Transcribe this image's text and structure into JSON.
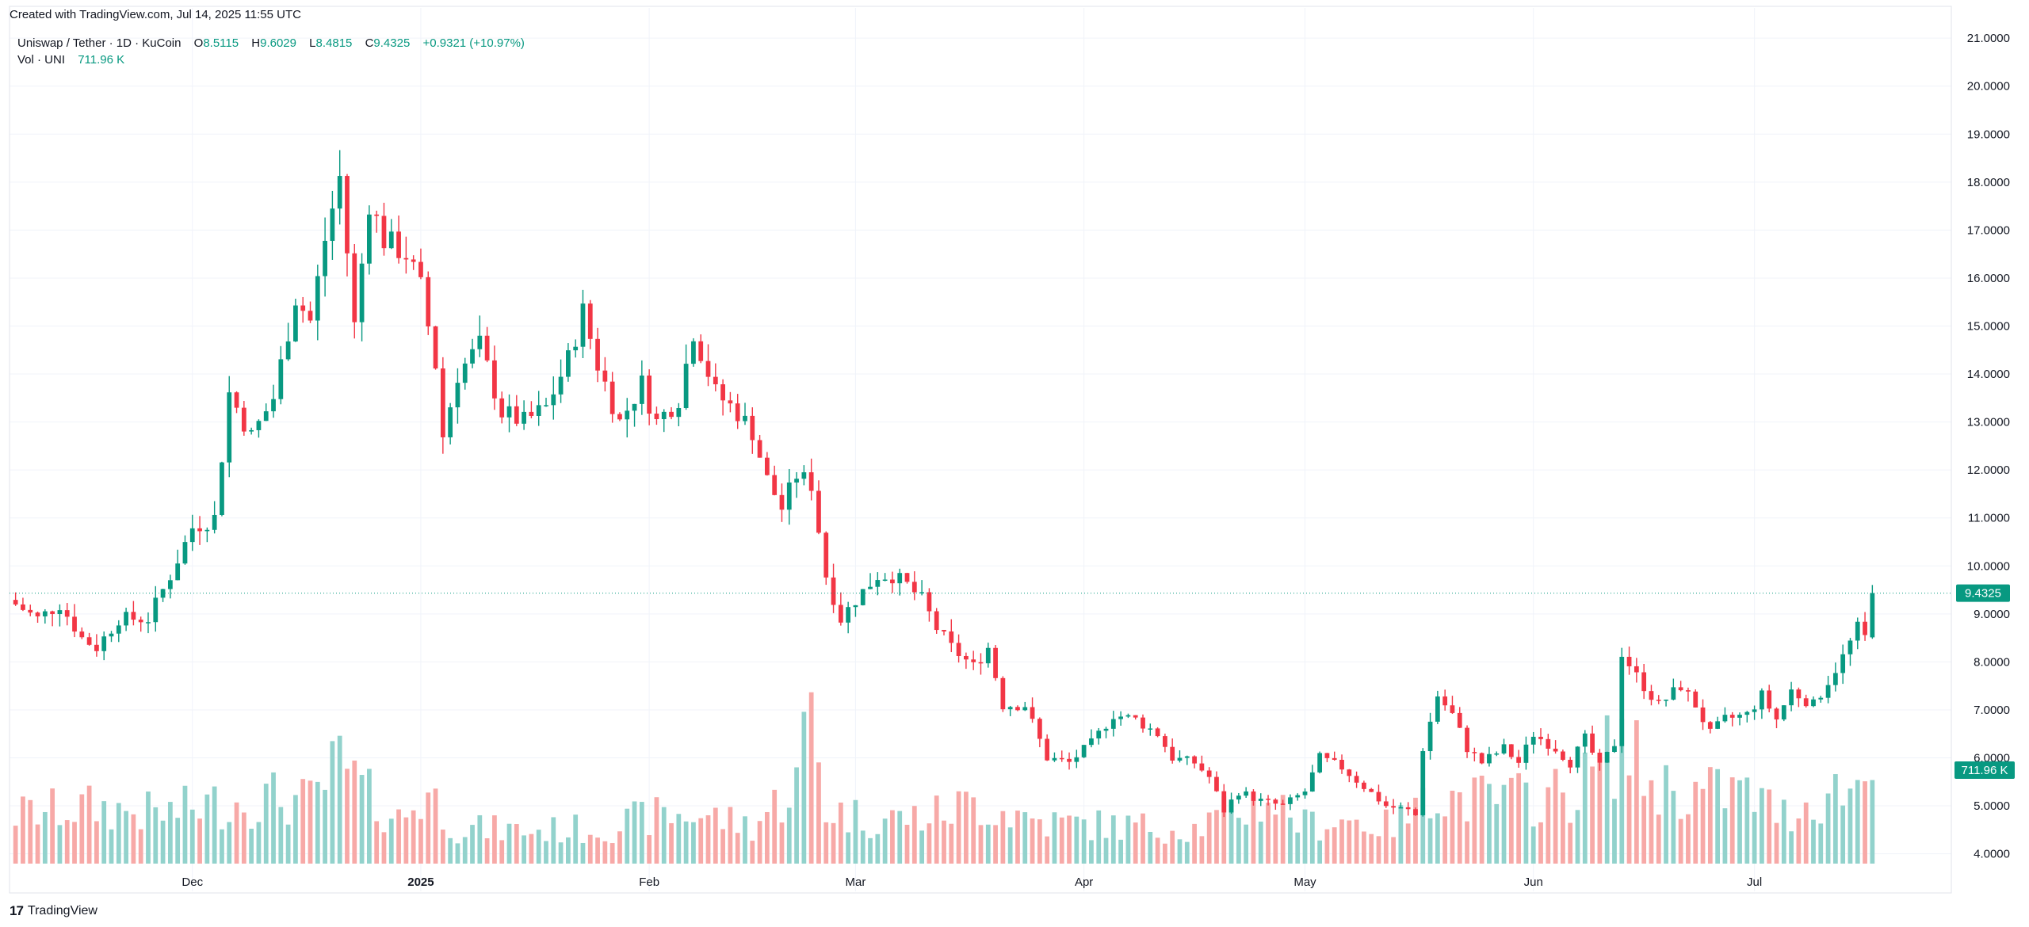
{
  "header": {
    "created_text": "Created with TradingView.com, Jul 14, 2025 11:55 UTC"
  },
  "legend": {
    "symbol": "Uniswap / Tether · 1D · KuCoin",
    "open_label": "O",
    "open": "8.5115",
    "high_label": "H",
    "high": "9.6029",
    "low_label": "L",
    "low": "8.4815",
    "close_label": "C",
    "close": "9.4325",
    "change": "+0.9321 (+10.97%)",
    "vol_label": "Vol · UNI",
    "vol": "711.96 K"
  },
  "footer": {
    "logo_text": "TradingView",
    "logo_mark": "17"
  },
  "colors": {
    "up": "#089981",
    "down": "#f23645",
    "vol_up": "#92d2cc",
    "vol_down": "#f7a9a7",
    "grid": "#f0f3fa"
  },
  "chart_data": {
    "type": "candlestick",
    "symbol": "UNIUSDT",
    "interval": "1D",
    "x_axis": {
      "labels": [
        "Dec",
        "2025",
        "Feb",
        "Mar",
        "Apr",
        "May",
        "Jun",
        "Jul"
      ],
      "bold": "2025"
    },
    "y_axis": {
      "min": 3.3,
      "max": 21.3,
      "scale": "linear",
      "tick_labels": [
        "4.0000",
        "5.0000",
        "6.0000",
        "7.0000",
        "8.0000",
        "9.0000",
        "10.0000",
        "11.0000",
        "12.0000",
        "13.0000",
        "14.0000",
        "15.0000",
        "16.0000",
        "17.0000",
        "18.0000",
        "19.0000",
        "20.0000",
        "21.0000"
      ]
    },
    "last_price": {
      "value": 9.4325,
      "label": "9.4325"
    },
    "last_volume": {
      "label": "711.96 K"
    },
    "close_anchors": [
      [
        0,
        9.2
      ],
      [
        3,
        8.9
      ],
      [
        6,
        9.2
      ],
      [
        9,
        8.5
      ],
      [
        11,
        8.3
      ],
      [
        14,
        8.9
      ],
      [
        18,
        8.9
      ],
      [
        21,
        9.8
      ],
      [
        24,
        10.8
      ],
      [
        27,
        11.0
      ],
      [
        29,
        13.6
      ],
      [
        32,
        12.7
      ],
      [
        35,
        13.5
      ],
      [
        38,
        15.6
      ],
      [
        40,
        15.1
      ],
      [
        42,
        16.8
      ],
      [
        44,
        18.1
      ],
      [
        46,
        15.0
      ],
      [
        48,
        17.6
      ],
      [
        50,
        16.8
      ],
      [
        53,
        16.5
      ],
      [
        55,
        15.8
      ],
      [
        57,
        14.2
      ],
      [
        58,
        12.7
      ],
      [
        60,
        14.0
      ],
      [
        63,
        14.6
      ],
      [
        66,
        13.2
      ],
      [
        69,
        13.0
      ],
      [
        72,
        13.3
      ],
      [
        75,
        14.3
      ],
      [
        77,
        15.3
      ],
      [
        79,
        14.2
      ],
      [
        82,
        13.0
      ],
      [
        85,
        13.8
      ],
      [
        87,
        13.0
      ],
      [
        90,
        13.5
      ],
      [
        92,
        14.9
      ],
      [
        95,
        13.6
      ],
      [
        98,
        13.2
      ],
      [
        100,
        12.8
      ],
      [
        102,
        11.8
      ],
      [
        104,
        11.2
      ],
      [
        106,
        11.9
      ],
      [
        108,
        11.7
      ],
      [
        110,
        9.8
      ],
      [
        112,
        8.9
      ],
      [
        114,
        9.3
      ],
      [
        117,
        9.8
      ],
      [
        119,
        9.8
      ],
      [
        121,
        9.6
      ],
      [
        123,
        9.3
      ],
      [
        125,
        8.7
      ],
      [
        127,
        8.3
      ],
      [
        130,
        7.9
      ],
      [
        132,
        8.3
      ],
      [
        134,
        7.1
      ],
      [
        137,
        7.1
      ],
      [
        140,
        6.0
      ],
      [
        143,
        5.9
      ],
      [
        146,
        6.3
      ],
      [
        149,
        6.9
      ],
      [
        152,
        6.8
      ],
      [
        155,
        6.5
      ],
      [
        157,
        6.0
      ],
      [
        160,
        5.9
      ],
      [
        162,
        5.6
      ],
      [
        164,
        4.9
      ],
      [
        166,
        5.3
      ],
      [
        169,
        5.1
      ],
      [
        172,
        5.0
      ],
      [
        175,
        5.3
      ],
      [
        177,
        6.0
      ],
      [
        180,
        5.8
      ],
      [
        183,
        5.4
      ],
      [
        186,
        5.0
      ],
      [
        189,
        4.9
      ],
      [
        190,
        4.8
      ],
      [
        191,
        6.2
      ],
      [
        193,
        7.3
      ],
      [
        195,
        6.9
      ],
      [
        197,
        6.2
      ],
      [
        199,
        5.9
      ],
      [
        202,
        6.2
      ],
      [
        204,
        5.9
      ],
      [
        206,
        6.5
      ],
      [
        209,
        6.2
      ],
      [
        211,
        5.9
      ],
      [
        213,
        6.4
      ],
      [
        215,
        5.8
      ],
      [
        217,
        6.3
      ],
      [
        218,
        8.2
      ],
      [
        220,
        7.7
      ],
      [
        223,
        7.1
      ],
      [
        226,
        7.5
      ],
      [
        228,
        7.1
      ],
      [
        230,
        6.5
      ],
      [
        232,
        6.8
      ],
      [
        235,
        6.9
      ],
      [
        237,
        7.3
      ],
      [
        239,
        6.8
      ],
      [
        241,
        7.4
      ],
      [
        244,
        7.1
      ],
      [
        246,
        7.6
      ],
      [
        248,
        8.1
      ],
      [
        250,
        8.7
      ],
      [
        251,
        8.5
      ],
      [
        252,
        9.4325
      ]
    ],
    "volume_profile": [
      [
        0,
        420
      ],
      [
        10,
        480
      ],
      [
        20,
        420
      ],
      [
        26,
        500
      ],
      [
        35,
        560
      ],
      [
        40,
        520
      ],
      [
        44,
        840
      ],
      [
        48,
        560
      ],
      [
        52,
        380
      ],
      [
        56,
        600
      ],
      [
        60,
        300
      ],
      [
        70,
        280
      ],
      [
        80,
        300
      ],
      [
        86,
        400
      ],
      [
        93,
        420
      ],
      [
        100,
        320
      ],
      [
        104,
        560
      ],
      [
        106,
        700
      ],
      [
        108,
        1350
      ],
      [
        110,
        460
      ],
      [
        116,
        380
      ],
      [
        124,
        400
      ],
      [
        130,
        520
      ],
      [
        140,
        350
      ],
      [
        150,
        320
      ],
      [
        160,
        300
      ],
      [
        170,
        560
      ],
      [
        175,
        330
      ],
      [
        180,
        380
      ],
      [
        186,
        320
      ],
      [
        190,
        420
      ],
      [
        191,
        760
      ],
      [
        194,
        560
      ],
      [
        200,
        540
      ],
      [
        206,
        560
      ],
      [
        212,
        620
      ],
      [
        218,
        1050
      ],
      [
        222,
        680
      ],
      [
        228,
        600
      ],
      [
        234,
        620
      ],
      [
        240,
        420
      ],
      [
        244,
        540
      ],
      [
        248,
        640
      ],
      [
        252,
        711.96
      ]
    ],
    "month_start_index": {
      "Dec": 24,
      "2025": 55,
      "Feb": 86,
      "Mar": 114,
      "Apr": 145,
      "May": 175,
      "Jun": 206,
      "Jul": 236
    }
  }
}
